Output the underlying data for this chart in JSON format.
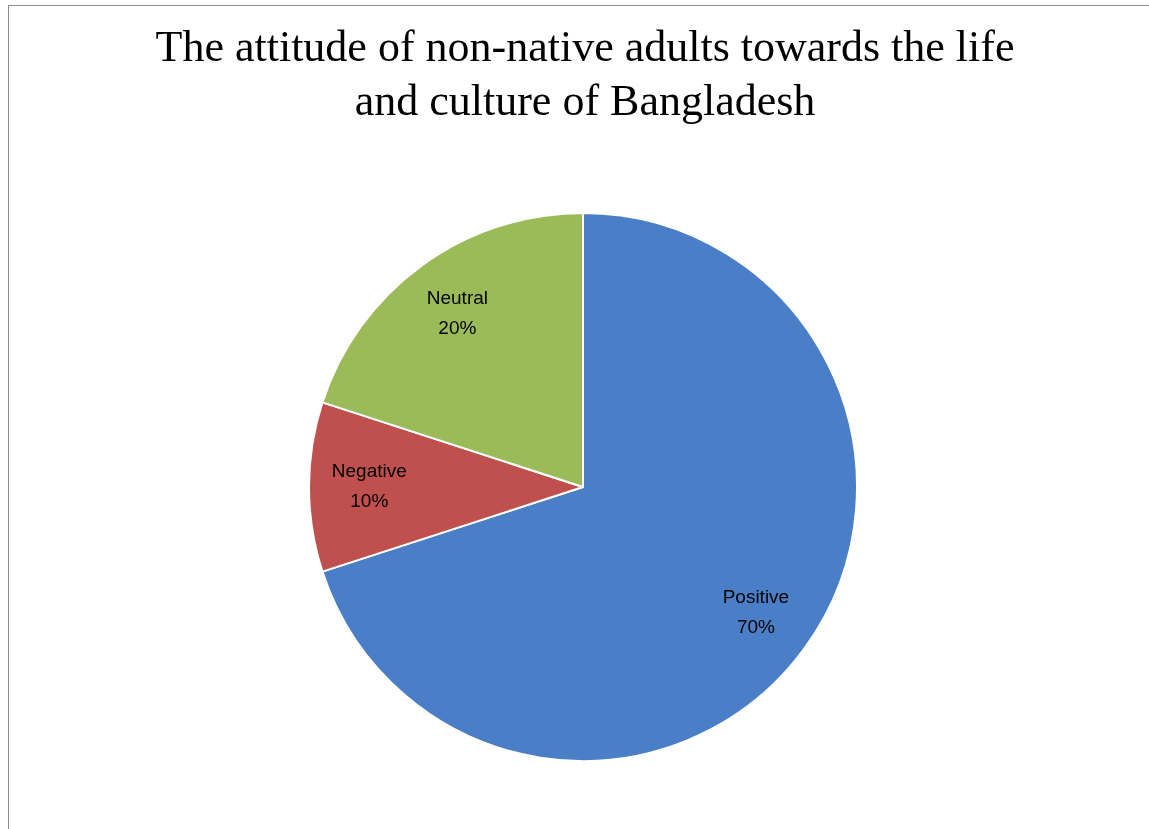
{
  "chart_data": {
    "type": "pie",
    "title": "The attitude of non-native adults towards the life and culture of Bangladesh",
    "categories": [
      "Positive",
      "Negative",
      "Neutral"
    ],
    "values": [
      70,
      10,
      20
    ],
    "colors": [
      "#4a7fc8",
      "#c0504d",
      "#9bbb59"
    ],
    "value_labels": [
      "70%",
      "10%",
      "20%"
    ],
    "legend": false
  }
}
